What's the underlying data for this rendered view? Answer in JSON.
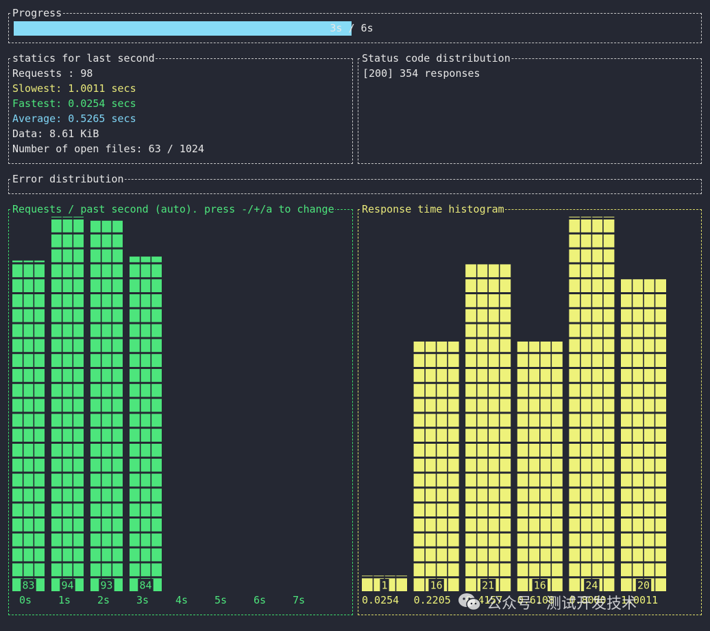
{
  "progress": {
    "title": "Progress",
    "label": "3s / 6s",
    "fraction": 0.5
  },
  "stats": {
    "title": "statics for last second",
    "requests": "Requests : 98",
    "slowest": "Slowest: 1.0011 secs",
    "fastest": "Fastest: 0.0254 secs",
    "average": "Average: 0.5265 secs",
    "data": "Data: 8.61 KiB",
    "open_files": "Number of open files: 63 / 1024"
  },
  "status_codes": {
    "title": "Status code distribution",
    "lines": [
      "[200] 354 responses"
    ]
  },
  "errors": {
    "title": "Error distribution"
  },
  "colors": {
    "background": "#252833",
    "green": "#4de57c",
    "yellow": "#eef27a",
    "cyan": "#87dbf6"
  },
  "watermark": {
    "icon": "wechat-icon",
    "text": "公众号 · 测试开发技术"
  },
  "chart_data": [
    {
      "type": "bar",
      "title": "Requests / past second (auto). press -/+/a to change",
      "categories": [
        "0s",
        "1s",
        "2s",
        "3s",
        "4s",
        "5s",
        "6s",
        "7s"
      ],
      "values": [
        83,
        94,
        93,
        84,
        null,
        null,
        null,
        null
      ],
      "labels": [
        "83",
        "94",
        "93",
        "84",
        "",
        "",
        "",
        ""
      ],
      "ylim": [
        0,
        94
      ],
      "color": "#4de57c"
    },
    {
      "type": "bar",
      "title": "Response time histogram",
      "categories": [
        "0.0254",
        "0.2205",
        "0.4157",
        "0.6108",
        "0.8060",
        "1.0011"
      ],
      "values": [
        1,
        16,
        21,
        16,
        24,
        20
      ],
      "labels": [
        "1",
        "16",
        "21",
        "16",
        "24",
        "20"
      ],
      "ylim": [
        0,
        24
      ],
      "color": "#eef27a"
    }
  ]
}
